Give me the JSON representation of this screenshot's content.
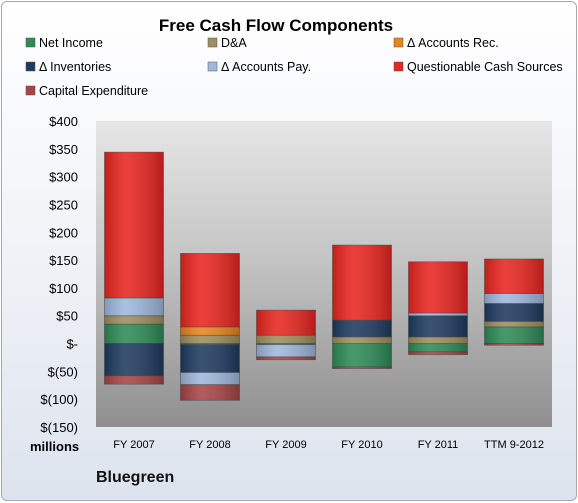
{
  "chart_data": {
    "type": "bar",
    "stacked": true,
    "title": "Free Cash Flow Components",
    "units_label": "millions",
    "company": "Bluegreen",
    "categories": [
      "FY 2007",
      "FY 2008",
      "FY 2009",
      "FY 2010",
      "FY 2011",
      "TTM 9-2012"
    ],
    "ylim": [
      -150,
      400
    ],
    "yticks": [
      -150,
      -100,
      -50,
      0,
      50,
      100,
      150,
      200,
      250,
      300,
      350,
      400
    ],
    "ytick_labels": [
      "$(150)",
      "$(100)",
      "$(50)",
      "$-",
      "$50",
      "$100",
      "$150",
      "$200",
      "$250",
      "$300",
      "$350",
      "$400"
    ],
    "legend_position": "top",
    "grid": false,
    "series": [
      {
        "name": "Net Income",
        "color": "#2e8b57",
        "values": [
          35,
          -2,
          -2,
          -42,
          -15,
          30
        ]
      },
      {
        "name": "D&A",
        "color": "#9e8e5e",
        "values": [
          15,
          15,
          15,
          12,
          12,
          10
        ]
      },
      {
        "name": "Δ Accounts Rec.",
        "color": "#e8861a",
        "values": [
          0,
          15,
          0,
          0,
          0,
          0
        ]
      },
      {
        "name": "Δ Inventories",
        "color": "#1f3a5f",
        "values": [
          -58,
          -50,
          0,
          30,
          38,
          32
        ]
      },
      {
        "name": "Δ Accounts Pay.",
        "color": "#9fb8dc",
        "values": [
          32,
          -22,
          -22,
          0,
          5,
          18
        ]
      },
      {
        "name": "Questionable Cash Sources",
        "color": "#e8251f",
        "values": [
          262,
          132,
          45,
          135,
          92,
          62
        ]
      },
      {
        "name": "Capital Expenditure",
        "color": "#a84445",
        "values": [
          -15,
          -28,
          -5,
          -3,
          -5,
          -3
        ]
      }
    ]
  }
}
